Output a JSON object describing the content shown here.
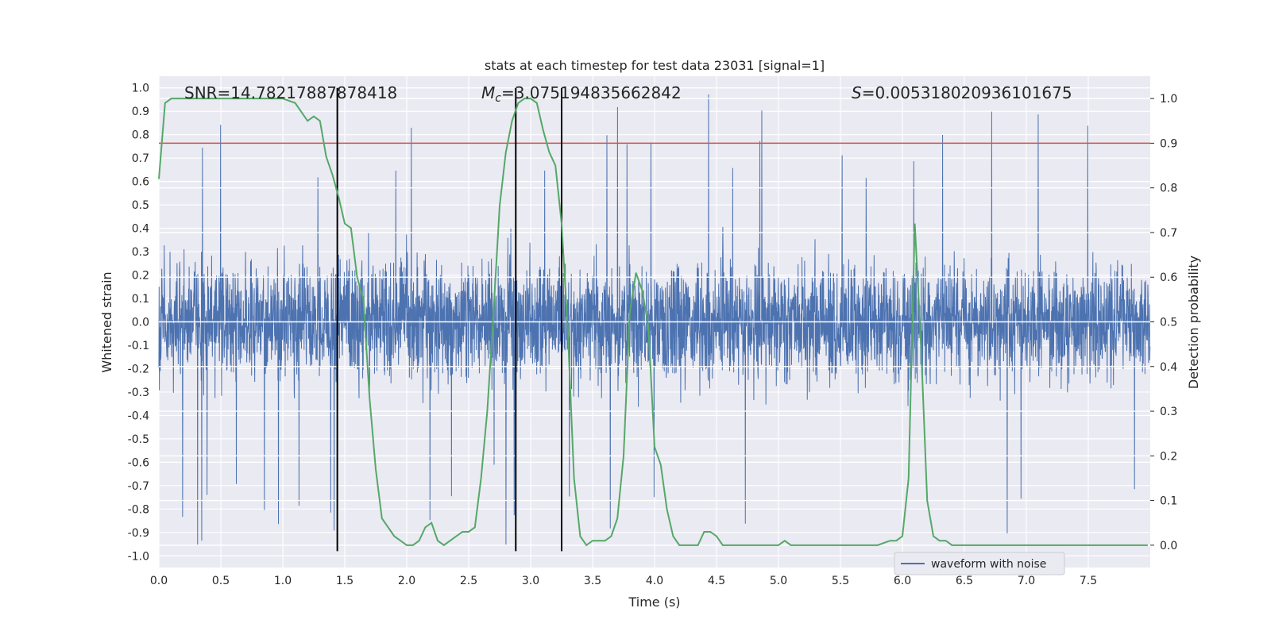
{
  "chart_data": {
    "type": "line",
    "title": "stats at each timestep for test data 23031 [signal=1]",
    "xlabel": "Time (s)",
    "ylabel": "Whitened strain",
    "ylabel_right": "Detection probability",
    "xlim": [
      0.0,
      8.0
    ],
    "ylim": [
      -1.05,
      1.05
    ],
    "ylim_right": [
      -0.05,
      1.05
    ],
    "x_ticks": [
      "0.0",
      "0.5",
      "1.0",
      "1.5",
      "2.0",
      "2.5",
      "3.0",
      "3.5",
      "4.0",
      "4.5",
      "5.0",
      "5.5",
      "6.0",
      "6.5",
      "7.0",
      "7.5"
    ],
    "y_ticks": [
      "1.0",
      "0.9",
      "0.8",
      "0.7",
      "0.6",
      "0.5",
      "0.4",
      "0.3",
      "0.2",
      "0.1",
      "0.0",
      "-0.1",
      "-0.2",
      "-0.3",
      "-0.4",
      "-0.5",
      "-0.6",
      "-0.7",
      "-0.8",
      "-0.9",
      "-1.0"
    ],
    "y_ticks_right": [
      "1.0",
      "0.9",
      "0.8",
      "0.7",
      "0.6",
      "0.5",
      "0.4",
      "0.3",
      "0.2",
      "0.1",
      "0.0"
    ],
    "annotations": {
      "snr": "SNR=14.78217887878418",
      "mc_symbol": "M",
      "mc_sub": "c",
      "mc_value": "=3.075194835662842",
      "s_symbol": "S",
      "s_value": "=0.005318020936101675"
    },
    "threshold": {
      "value": 0.9,
      "axis": "right",
      "color": "#c44e52"
    },
    "vertical_lines": [
      1.44,
      2.88,
      3.25
    ],
    "legend": {
      "label": "waveform with noise",
      "position": "lower-right"
    },
    "series": [
      {
        "name": "waveform with noise",
        "color": "#4c72b0",
        "axis": "left",
        "samples": 4096,
        "typical_amplitude": 0.4,
        "peak_amplitude": 0.98
      },
      {
        "name": "Detection probability",
        "color": "#55a868",
        "axis": "right",
        "x": [
          0.0,
          0.05,
          0.1,
          0.15,
          0.2,
          0.3,
          0.4,
          0.5,
          0.6,
          0.7,
          0.8,
          0.9,
          1.0,
          1.1,
          1.15,
          1.2,
          1.25,
          1.3,
          1.35,
          1.4,
          1.45,
          1.5,
          1.55,
          1.6,
          1.65,
          1.7,
          1.75,
          1.8,
          1.85,
          1.9,
          1.95,
          2.0,
          2.05,
          2.1,
          2.15,
          2.2,
          2.25,
          2.3,
          2.35,
          2.4,
          2.45,
          2.5,
          2.55,
          2.6,
          2.65,
          2.7,
          2.75,
          2.8,
          2.85,
          2.9,
          2.95,
          3.0,
          3.05,
          3.1,
          3.15,
          3.2,
          3.25,
          3.3,
          3.35,
          3.4,
          3.45,
          3.5,
          3.55,
          3.6,
          3.65,
          3.7,
          3.75,
          3.8,
          3.85,
          3.9,
          3.95,
          4.0,
          4.05,
          4.1,
          4.15,
          4.2,
          4.25,
          4.3,
          4.35,
          4.4,
          4.45,
          4.5,
          4.55,
          4.6,
          4.65,
          4.7,
          4.8,
          4.9,
          5.0,
          5.05,
          5.1,
          5.2,
          5.3,
          5.4,
          5.5,
          5.6,
          5.7,
          5.8,
          5.9,
          5.95,
          6.0,
          6.05,
          6.1,
          6.15,
          6.2,
          6.25,
          6.3,
          6.35,
          6.4,
          6.45,
          6.5,
          6.6,
          6.7,
          6.8,
          6.9,
          7.0,
          7.1,
          7.2,
          7.3,
          7.4,
          7.5,
          7.6,
          7.7,
          7.8,
          7.9,
          7.98
        ],
        "y": [
          0.82,
          0.99,
          1.0,
          1.0,
          1.0,
          1.0,
          1.0,
          1.0,
          1.0,
          1.0,
          1.0,
          1.0,
          1.0,
          0.99,
          0.97,
          0.95,
          0.96,
          0.95,
          0.87,
          0.83,
          0.78,
          0.72,
          0.71,
          0.6,
          0.55,
          0.33,
          0.17,
          0.06,
          0.04,
          0.02,
          0.01,
          0.0,
          0.0,
          0.01,
          0.04,
          0.05,
          0.01,
          0.0,
          0.01,
          0.02,
          0.03,
          0.03,
          0.04,
          0.15,
          0.3,
          0.52,
          0.76,
          0.88,
          0.95,
          0.99,
          1.0,
          1.0,
          0.99,
          0.93,
          0.88,
          0.85,
          0.72,
          0.48,
          0.15,
          0.02,
          0.0,
          0.01,
          0.01,
          0.01,
          0.02,
          0.06,
          0.2,
          0.52,
          0.61,
          0.57,
          0.49,
          0.22,
          0.18,
          0.08,
          0.02,
          0.0,
          0.0,
          0.0,
          0.0,
          0.03,
          0.03,
          0.02,
          0.0,
          0.0,
          0.0,
          0.0,
          0.0,
          0.0,
          0.0,
          0.01,
          0.0,
          0.0,
          0.0,
          0.0,
          0.0,
          0.0,
          0.0,
          0.0,
          0.01,
          0.01,
          0.02,
          0.15,
          0.72,
          0.45,
          0.1,
          0.02,
          0.01,
          0.01,
          0.0,
          0.0,
          0.0,
          0.0,
          0.0,
          0.0,
          0.0,
          0.0,
          0.0,
          0.0,
          0.0,
          0.0,
          0.0,
          0.0,
          0.0,
          0.0,
          0.0,
          0.0
        ]
      }
    ],
    "colors": {
      "plot_bg": "#eaeaf2",
      "grid": "#ffffff",
      "vline": "#000000"
    }
  }
}
